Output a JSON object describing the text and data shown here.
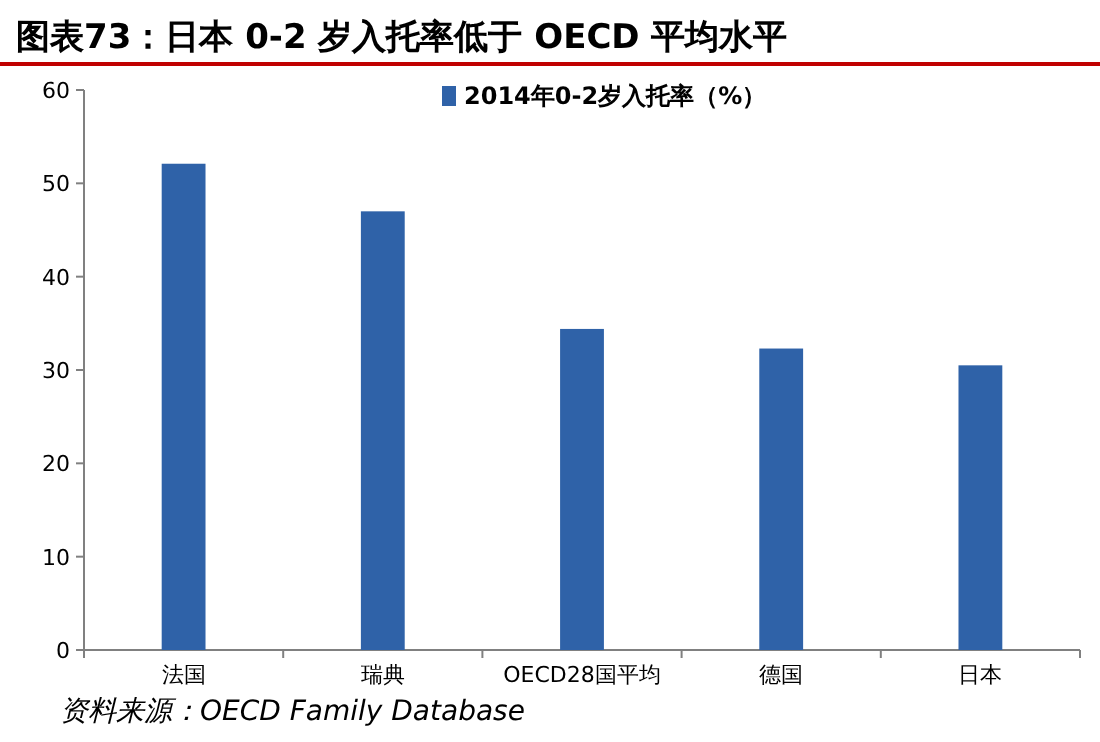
{
  "chart_data": {
    "type": "bar",
    "title": "图表73：日本 0-2 岁入托率低于 OECD 平均水平",
    "categories": [
      "法国",
      "瑞典",
      "OECD28国平均",
      "德国",
      "日本"
    ],
    "series": [
      {
        "name": "2014年0-2岁入托率（%）",
        "color": "#2f62a8",
        "values": [
          52.1,
          47,
          34.4,
          32.3,
          30.5
        ]
      }
    ],
    "ylim": [
      0,
      60
    ],
    "yticks": [
      0,
      10,
      20,
      30,
      40,
      50,
      60
    ],
    "grid": false,
    "legend": "top",
    "annotations": [
      "资料来源：OECD Family Database"
    ]
  }
}
